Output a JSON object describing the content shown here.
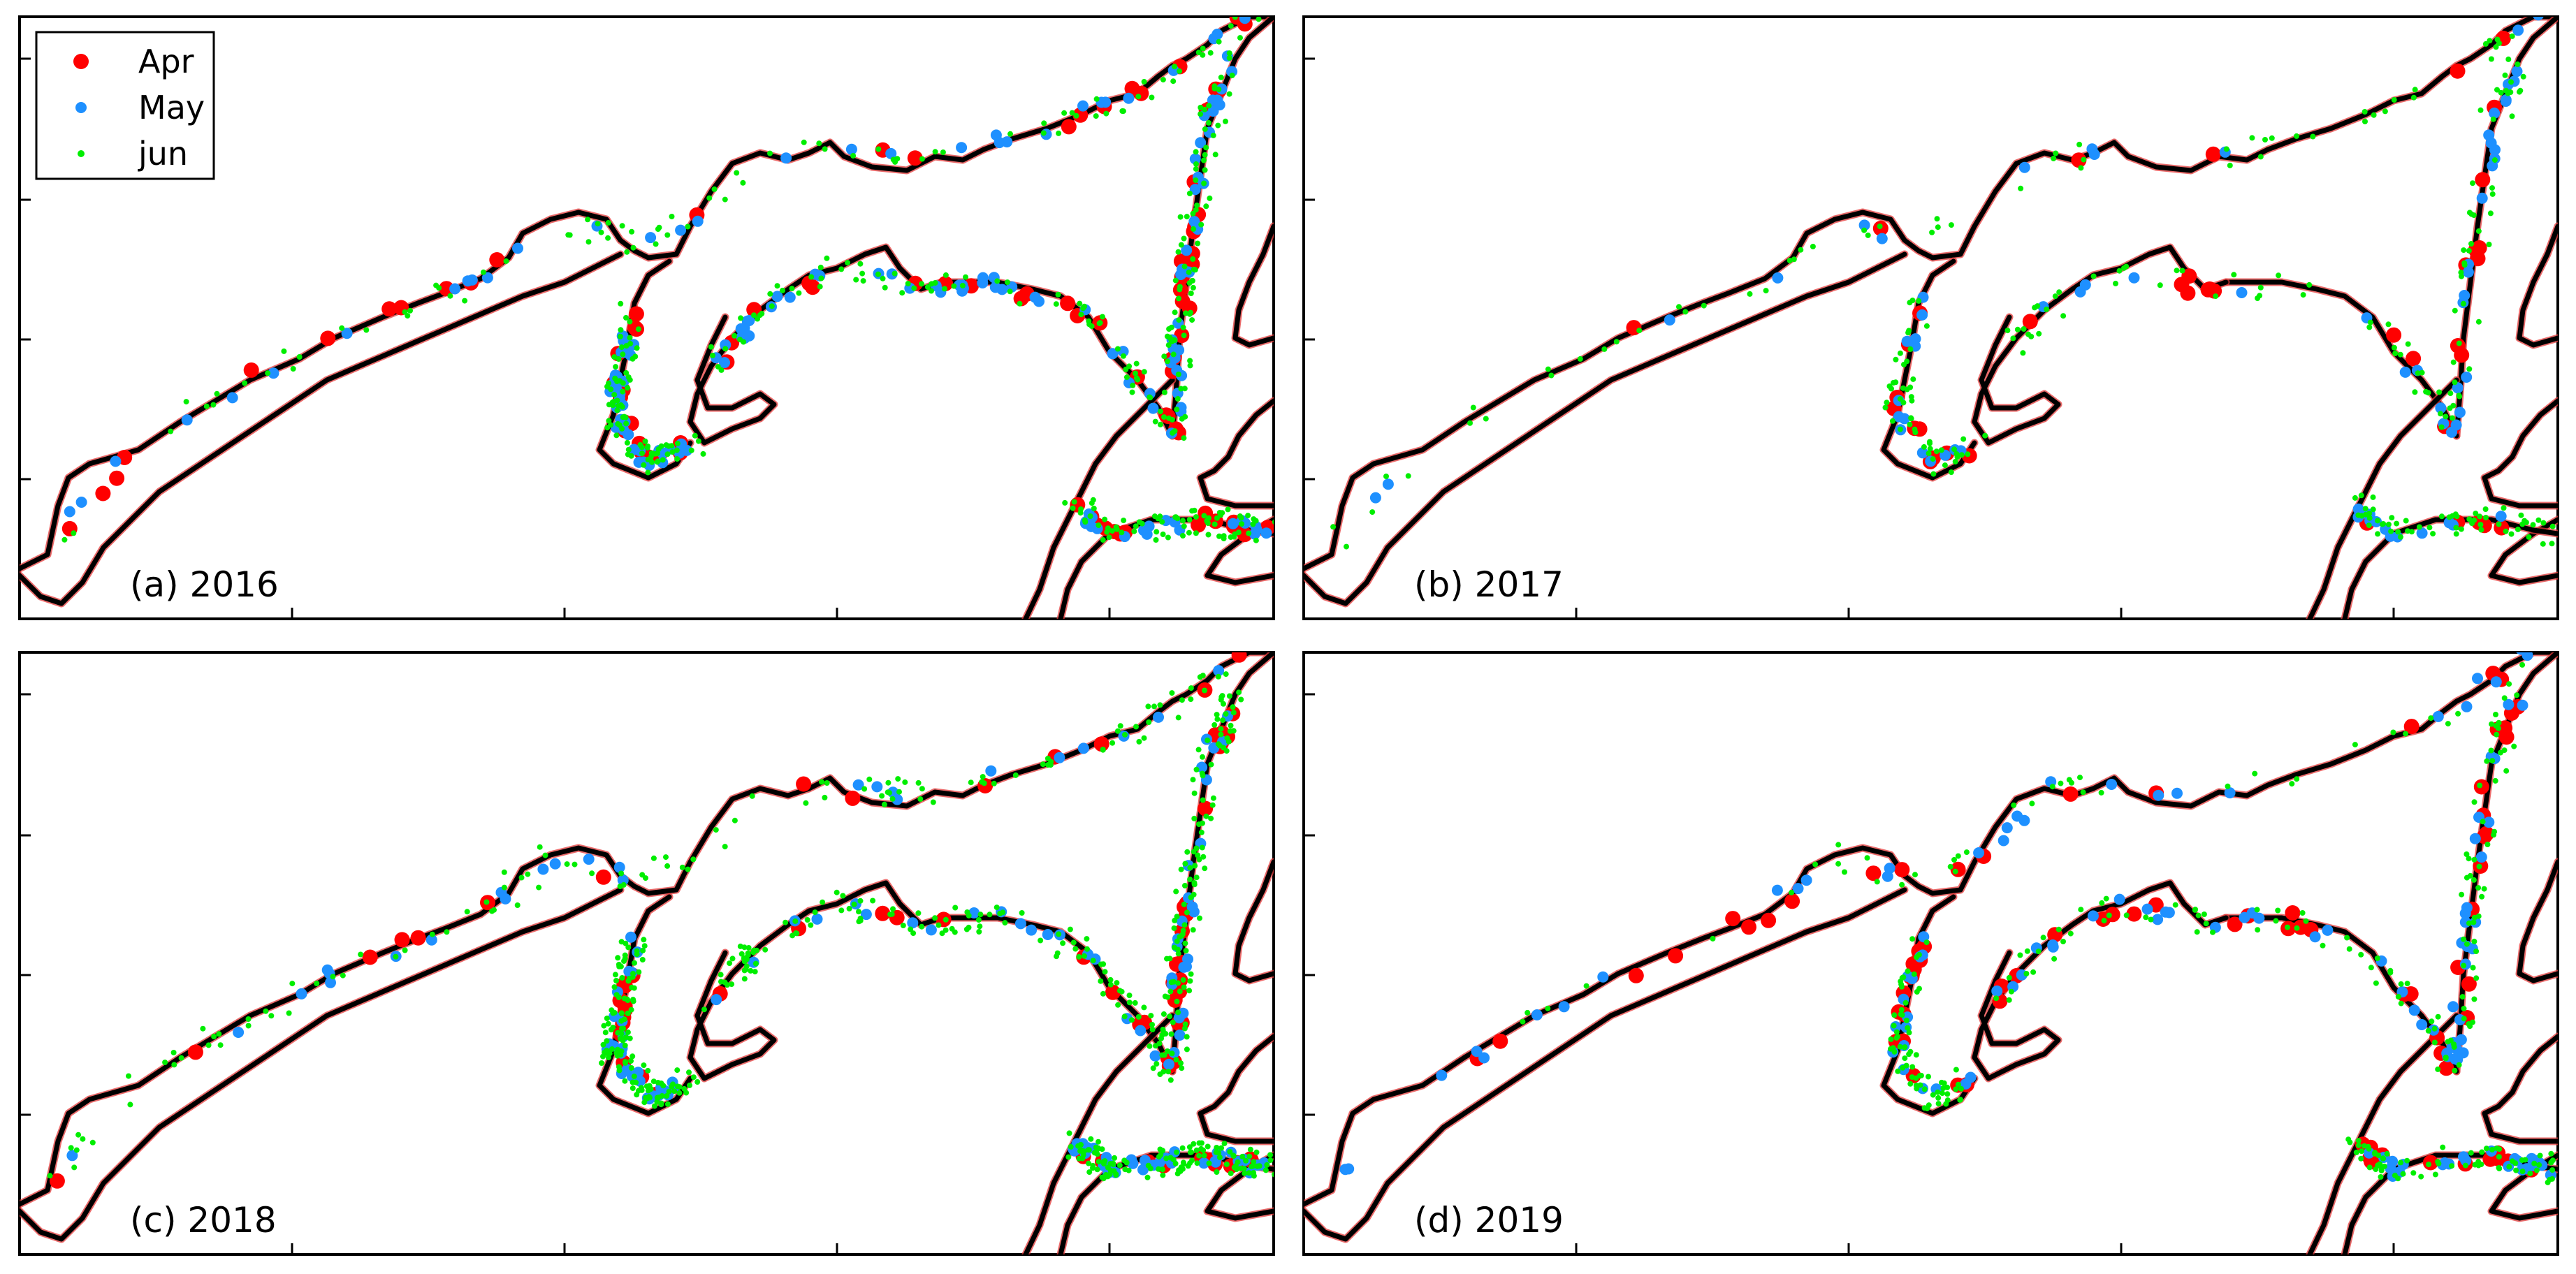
{
  "legend": {
    "entries": [
      {
        "label": "Apr",
        "color": "#ff0000",
        "marker": "large-dot"
      },
      {
        "label": "May",
        "color": "#1e90ff",
        "marker": "medium-dot"
      },
      {
        "label": "jun",
        "color": "#00ee00",
        "marker": "small-dot"
      }
    ]
  },
  "panels": [
    {
      "id": "a",
      "label": "(a) 2016"
    },
    {
      "id": "b",
      "label": "(b) 2017"
    },
    {
      "id": "c",
      "label": "(c) 2018"
    },
    {
      "id": "d",
      "label": "(d) 2019"
    }
  ],
  "colors": {
    "coastline": "#000000",
    "coast_halo": "#e33a3a",
    "apr": "#ff0000",
    "may": "#1e90ff",
    "jun": "#00ee00"
  }
}
